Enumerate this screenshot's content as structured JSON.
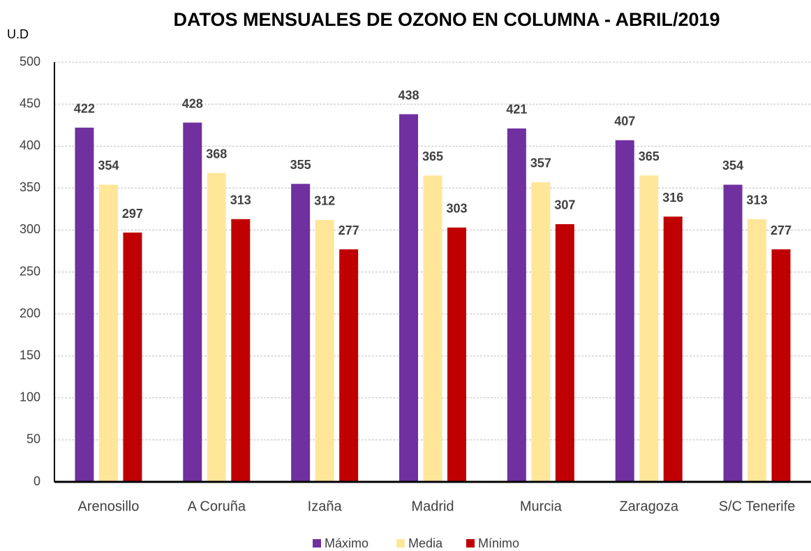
{
  "chart_data": {
    "type": "bar",
    "title": "DATOS MENSUALES DE OZONO EN COLUMNA - ABRIL/2019",
    "y_label": "U.D",
    "categories": [
      "Arenosillo",
      "A Coruña",
      "Izaña",
      "Madrid",
      "Murcia",
      "Zaragoza",
      "S/C Tenerife"
    ],
    "series": [
      {
        "name": "Máximo",
        "color": "#7030a0",
        "values": [
          422,
          428,
          355,
          438,
          421,
          407,
          354
        ]
      },
      {
        "name": "Media",
        "color": "#ffe699",
        "values": [
          354,
          368,
          312,
          365,
          357,
          365,
          313
        ]
      },
      {
        "name": "Mínimo",
        "color": "#c00000",
        "values": [
          297,
          313,
          277,
          303,
          307,
          316,
          277
        ]
      }
    ],
    "ylim": [
      0,
      500
    ],
    "yticks": [
      0,
      50,
      100,
      150,
      200,
      250,
      300,
      350,
      400,
      450,
      500
    ],
    "grid": true,
    "legend": "bottom"
  }
}
